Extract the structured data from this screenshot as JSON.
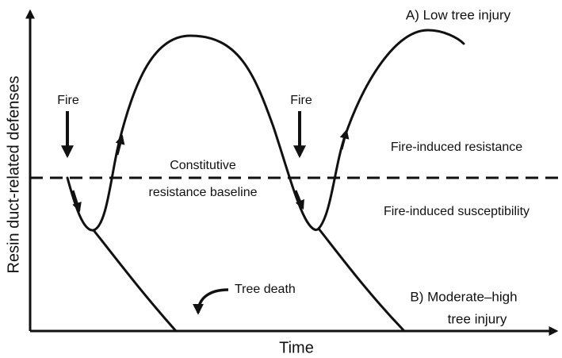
{
  "labels": {
    "scenario_a": "A) Low tree injury",
    "fire_1": "Fire",
    "fire_2": "Fire",
    "baseline_line1": "Constitutive",
    "baseline_line2": "resistance baseline",
    "resistance": "Fire-induced resistance",
    "susceptibility": "Fire-induced susceptibility",
    "tree_death": "Tree death",
    "scenario_b_line1": "B) Moderate–high",
    "scenario_b_line2": "tree injury"
  },
  "axes": {
    "x_label": "Time",
    "y_label": "Resin duct-related defenses"
  }
}
